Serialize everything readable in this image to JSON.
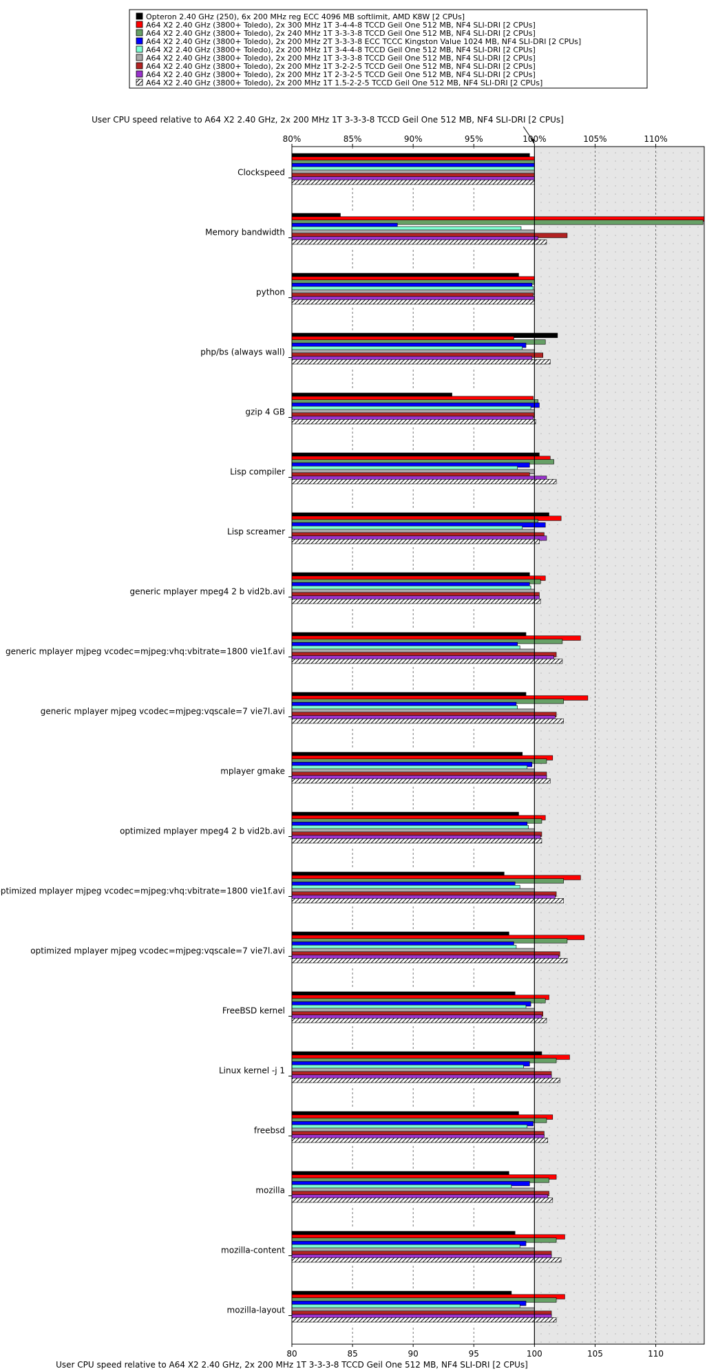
{
  "chart_data": {
    "type": "bar",
    "orientation": "horizontal",
    "title": "User CPU speed relative to A64 X2 2.40 GHz, 2x 200 MHz 1T 3-3-3-8 TCCD Geil One 512 MB, NF4 SLI-DRI [2 CPUs]",
    "xlabel": "User CPU speed relative to A64 X2 2.40 GHz, 2x 200 MHz 1T 3-3-3-8 TCCD Geil One 512 MB, NF4 SLI-DRI [2 CPUs]",
    "xlim": [
      80,
      114
    ],
    "baseline": 100,
    "x_ticks_bottom": [
      "80",
      "85",
      "90",
      "95",
      "100",
      "105",
      "110"
    ],
    "x_ticks_top": [
      "80%",
      "85%",
      "90%",
      "95%",
      "100%",
      "105%",
      "110%"
    ],
    "legend_position": "top",
    "grid": true,
    "categories": [
      "Clockspeed",
      "Memory bandwidth",
      "python",
      "php/bs (always wall)",
      "gzip 4 GB",
      "Lisp compiler",
      "Lisp screamer",
      "generic mplayer mpeg4 2 b vid2b.avi",
      "generic mplayer mjpeg vcodec=mjpeg:vhq:vbitrate=1800 vie1f.avi",
      "generic mplayer mjpeg vcodec=mjpeg:vqscale=7 vie7l.avi",
      "mplayer gmake",
      "optimized mplayer mpeg4 2 b vid2b.avi",
      "optimized mplayer mjpeg vcodec=mjpeg:vhq:vbitrate=1800 vie1f.avi",
      "optimized mplayer mjpeg vcodec=mjpeg:vqscale=7 vie7l.avi",
      "FreeBSD kernel",
      "Linux kernel -j 1",
      "freebsd",
      "mozilla",
      "mozilla-content",
      "mozilla-layout"
    ],
    "series": [
      {
        "name": "Opteron 2.40 GHz (250), 6x 200 MHz reg ECC 4096 MB softlimit, AMD K8W [2 CPUs]",
        "color": "#000000",
        "values": [
          99.6,
          84.0,
          98.7,
          101.9,
          93.2,
          100.4,
          101.2,
          99.6,
          99.3,
          99.3,
          99.0,
          98.7,
          97.5,
          97.9,
          98.4,
          100.6,
          98.7,
          97.9,
          98.4,
          98.1
        ]
      },
      {
        "name": "A64 X2 2.40 GHz (3800+ Toledo), 2x 300 MHz 1T 3-4-4-8 TCCD Geil One 512 MB, NF4 SLI-DRI [2 CPUs]",
        "color": "#ff0000",
        "values": [
          100.0,
          114.0,
          100.0,
          98.3,
          99.9,
          101.3,
          102.2,
          100.9,
          103.8,
          104.4,
          101.5,
          100.9,
          103.8,
          104.1,
          101.2,
          102.9,
          101.5,
          101.8,
          102.5,
          102.5
        ]
      },
      {
        "name": "A64 X2 2.40 GHz (3800+ Toledo), 2x 240 MHz 1T 3-3-3-8 TCCD Geil One 512 MB, NF4 SLI-DRI [2 CPUs]",
        "color": "#66a066",
        "values": [
          100.0,
          113.9,
          100.0,
          100.9,
          100.3,
          101.6,
          100.3,
          100.5,
          102.3,
          102.4,
          101.0,
          100.6,
          102.4,
          102.7,
          100.9,
          101.8,
          101.0,
          101.2,
          101.8,
          101.8
        ]
      },
      {
        "name": "A64 X2 2.40 GHz (3800+ Toledo), 2x 200 MHz 2T 3-3-3-8 ECC TCCC Kingston Value 1024 MB, NF4 SLI-DRI [2 CPUs]",
        "color": "#0000ff",
        "values": [
          100.0,
          88.7,
          99.8,
          99.3,
          100.4,
          99.6,
          100.9,
          99.6,
          98.6,
          98.5,
          99.8,
          99.4,
          98.4,
          98.3,
          99.7,
          99.6,
          99.9,
          99.6,
          99.3,
          99.3
        ]
      },
      {
        "name": "A64 X2 2.40 GHz (3800+ Toledo), 2x 200 MHz 1T 3-4-4-8 TCCD Geil One 512 MB, NF4 SLI-DRI [2 CPUs]",
        "color": "#7fffd4",
        "values": [
          100.0,
          98.9,
          99.9,
          99.0,
          99.7,
          98.6,
          99.0,
          99.7,
          98.8,
          98.6,
          99.4,
          99.5,
          98.8,
          98.5,
          99.3,
          99.1,
          99.4,
          98.1,
          98.8,
          98.8
        ]
      },
      {
        "name": "A64 X2 2.40 GHz (3800+ Toledo), 2x 200 MHz 1T 3-3-3-8 TCCD Geil One 512 MB, NF4 SLI-DRI [2 CPUs]",
        "color": "#a9a9a9",
        "values": [
          100.0,
          100.0,
          100.0,
          100.0,
          100.0,
          100.0,
          100.0,
          100.0,
          100.0,
          100.0,
          100.0,
          100.0,
          100.0,
          100.0,
          100.0,
          100.0,
          100.0,
          100.0,
          100.0,
          100.0
        ]
      },
      {
        "name": "A64 X2 2.40 GHz (3800+ Toledo), 2x 200 MHz 1T 3-2-2-5 TCCD Geil One 512 MB, NF4 SLI-DRI [2 CPUs]",
        "color": "#b22222",
        "values": [
          100.0,
          102.7,
          99.9,
          100.7,
          100.0,
          99.6,
          100.8,
          100.4,
          101.8,
          101.8,
          101.0,
          100.6,
          101.8,
          102.1,
          100.7,
          101.4,
          100.8,
          101.2,
          101.4,
          101.4
        ]
      },
      {
        "name": "A64 X2 2.40 GHz (3800+ Toledo), 2x 200 MHz 1T 2-3-2-5 TCCD Geil One 512 MB, NF4 SLI-DRI [2 CPUs]",
        "color": "#9932cc",
        "values": [
          100.0,
          100.3,
          100.0,
          99.8,
          99.9,
          101.0,
          101.0,
          100.4,
          101.6,
          101.7,
          101.0,
          100.5,
          101.7,
          102.0,
          100.6,
          101.4,
          100.8,
          101.1,
          101.4,
          101.4
        ]
      },
      {
        "name": "A64 X2 2.40 GHz (3800+ Toledo), 2x 200 MHz 1T 1.5-2-2-5 TCCD Geil One 512 MB, NF4 SLI-DRI [2 CPUs]",
        "color": "hatched",
        "values": [
          100.0,
          101.0,
          100.0,
          101.3,
          100.1,
          101.8,
          100.4,
          100.5,
          102.3,
          102.4,
          101.3,
          100.6,
          102.4,
          102.7,
          101.0,
          102.1,
          101.1,
          101.5,
          102.2,
          101.8
        ]
      }
    ]
  }
}
